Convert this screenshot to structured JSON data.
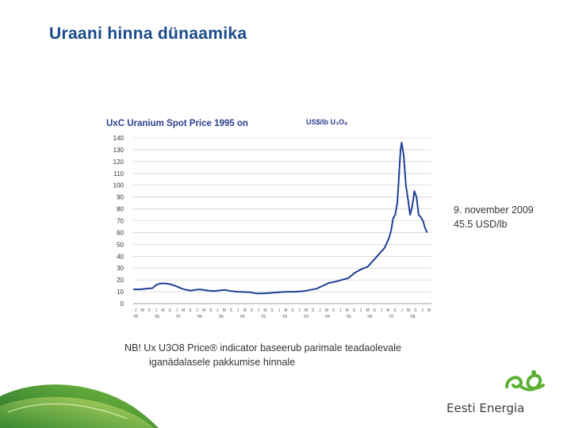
{
  "slide": {
    "title": "Uraani hinna dünaamika"
  },
  "annotation": {
    "line1": "9. november 2009",
    "line2": "45.5 USD/lb"
  },
  "note": {
    "line1": "NB! Ux U3O8 Price® indicator baseerub parimale teadaolevale",
    "line2": "iganädalasele pakkumise hinnale"
  },
  "logo": {
    "text": "Eesti Energia"
  },
  "colors": {
    "title": "#1a4a8c",
    "chart_title": "#2a3f8f",
    "line": "#1f3f94",
    "grid": "#c8c8c8",
    "logo_green": "#5bb033",
    "swoosh_dark": "#1f6b2a",
    "swoosh_light": "#7cc242"
  },
  "chart_data": {
    "type": "line",
    "title": "UxC Uranium Spot Price 1995 on",
    "unit_label": "US$/lb U₃O₈",
    "ylim": [
      0,
      140
    ],
    "y_ticks": [
      0,
      10,
      20,
      30,
      40,
      50,
      60,
      70,
      80,
      90,
      100,
      110,
      120,
      130,
      140
    ],
    "xlim": [
      1995.0,
      2009.0
    ],
    "x_month_labels": [
      "J",
      "M",
      "S",
      "J",
      "M",
      "S",
      "J",
      "M",
      "S",
      "J",
      "M",
      "S",
      "J",
      "M",
      "S",
      "J",
      "M",
      "S",
      "J",
      "M",
      "S",
      "J",
      "M",
      "S",
      "J",
      "M",
      "S",
      "J",
      "M",
      "S",
      "J",
      "M",
      "S",
      "J",
      "M",
      "S",
      "J",
      "M",
      "S",
      "J",
      "M",
      "S",
      "J",
      "M"
    ],
    "x_year_labels": [
      {
        "x": 1995.0,
        "label": "'95"
      },
      {
        "x": 1996.0,
        "label": "'96"
      },
      {
        "x": 1997.0,
        "label": "'97"
      },
      {
        "x": 1998.0,
        "label": "'98"
      },
      {
        "x": 1999.0,
        "label": "'99"
      },
      {
        "x": 2000.0,
        "label": "'00"
      },
      {
        "x": 2001.0,
        "label": "'01"
      },
      {
        "x": 2002.0,
        "label": "'02"
      },
      {
        "x": 2003.0,
        "label": "'03"
      },
      {
        "x": 2004.0,
        "label": "'04"
      },
      {
        "x": 2005.0,
        "label": "'05"
      },
      {
        "x": 2006.0,
        "label": "'06"
      },
      {
        "x": 2007.0,
        "label": "'07"
      },
      {
        "x": 2008.0,
        "label": "'08"
      }
    ],
    "grid": "horizontal",
    "series": [
      {
        "x": [
          1995.0,
          1995.3,
          1995.6,
          1995.9,
          1996.1,
          1996.3,
          1996.5,
          1996.7,
          1996.9,
          1997.1,
          1997.3,
          1997.5,
          1997.7,
          1997.9,
          1998.1,
          1998.3,
          1998.5,
          1998.8,
          1999.0,
          1999.3,
          1999.6,
          1999.9,
          2000.2,
          2000.5,
          2000.8,
          2001.0,
          2001.3,
          2001.6,
          2002.0,
          2002.3,
          2002.6,
          2003.0,
          2003.3,
          2003.6,
          2003.9,
          2004.2,
          2004.5,
          2004.8,
          2005.1,
          2005.4,
          2005.7,
          2006.0,
          2006.2,
          2006.4,
          2006.6,
          2006.8,
          2007.0,
          2007.1,
          2007.2,
          2007.3,
          2007.4,
          2007.45,
          2007.5,
          2007.55,
          2007.6,
          2007.7,
          2007.8,
          2007.9,
          2008.0,
          2008.1,
          2008.2,
          2008.3,
          2008.4,
          2008.5,
          2008.6,
          2008.7,
          2008.8
        ],
        "y": [
          12,
          12,
          12.5,
          13,
          16,
          17,
          17,
          16.5,
          15.5,
          14,
          12.5,
          11.5,
          11,
          11.5,
          12,
          11.5,
          11,
          10.5,
          11,
          11.5,
          10.5,
          10,
          9.8,
          9.5,
          8.5,
          8.5,
          8.8,
          9.2,
          9.8,
          10,
          10,
          10.5,
          11.5,
          12.5,
          15,
          17.5,
          18.5,
          20,
          21.5,
          26,
          29,
          31,
          35,
          39,
          43,
          47,
          55,
          61,
          72,
          75,
          85,
          100,
          115,
          130,
          136,
          125,
          100,
          88,
          75,
          82,
          95,
          90,
          75,
          73,
          70,
          64,
          60
        ]
      }
    ]
  }
}
